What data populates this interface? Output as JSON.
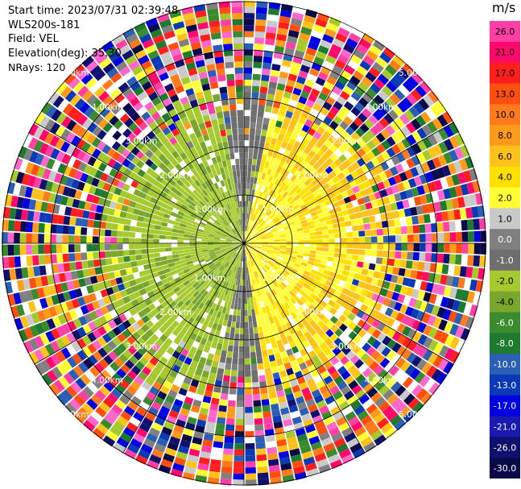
{
  "header": {
    "start_time": "Start time: 2023/07/31 02:39:48",
    "instrument": "WLS200s-181",
    "field": "Field: VEL",
    "elevation": "Elevation(deg): 35.30",
    "nrays": "NRays: 120"
  },
  "colorbar": {
    "unit": "m/s",
    "ticks": [
      "26.0",
      "21.0",
      "17.0",
      "13.0",
      "10.0",
      "8.0",
      "6.0",
      "4.0",
      "2.0",
      "1.0",
      "0.0",
      "-1.0",
      "-2.0",
      "-4.0",
      "-6.0",
      "-8.0",
      "-10.0",
      "-13.0",
      "-17.0",
      "-21.0",
      "-26.0",
      "-30.0"
    ],
    "colors": [
      "#ff3fa5",
      "#ff0a6b",
      "#ff1e1e",
      "#ff4f0f",
      "#ff7a1a",
      "#ff9b1a",
      "#ffc21a",
      "#ffe000",
      "#ffff33",
      "#c9c9c9",
      "#808080",
      "#6e6e6e",
      "#a6c92e",
      "#7aa62e",
      "#3a8a2e",
      "#1e7a2e",
      "#2b5fb5",
      "#0a3ab5",
      "#0000e0",
      "#1a1ab0",
      "#10106e",
      "#0a0a4a"
    ]
  },
  "range_rings": {
    "labels": [
      "1.00km",
      "2.00km",
      "3.00km",
      "4.00km",
      "5.00km"
    ]
  },
  "chart_data": {
    "type": "heatmap",
    "projection": "polar (PPI scan)",
    "nrays": 120,
    "range_km": [
      0,
      5
    ],
    "field": "VEL",
    "units": "m/s",
    "color_range": [
      -30,
      26
    ],
    "description_values": {
      "east_sector_velocity": 2.0,
      "west_sector_velocity": -2.0
    }
  }
}
